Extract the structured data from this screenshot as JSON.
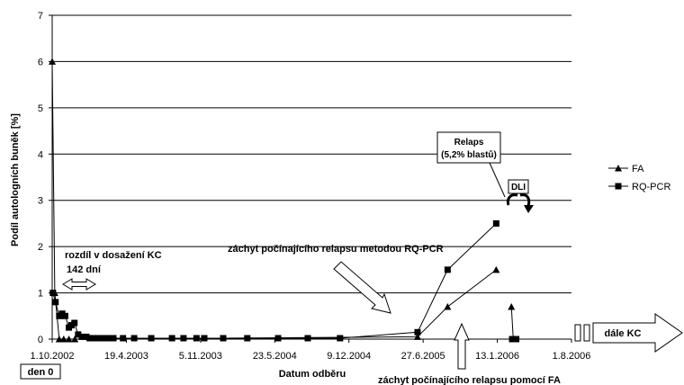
{
  "chart_data": {
    "type": "line",
    "ylabel": "Podíl autologních buněk [%]",
    "xlabel": "Datum odběru",
    "ylim": [
      0,
      7
    ],
    "yticks": [
      "0",
      "1",
      "2",
      "3",
      "4",
      "5",
      "6",
      "7"
    ],
    "xlim": [
      "2002-10-01",
      "2006-08-01"
    ],
    "xticks": [
      {
        "date": "2002-10-01",
        "label": "1.10.2002"
      },
      {
        "date": "2003-04-19",
        "label": "19.4.2003"
      },
      {
        "date": "2003-11-05",
        "label": "5.11.2003"
      },
      {
        "date": "2004-05-23",
        "label": "23.5.2004"
      },
      {
        "date": "2004-12-09",
        "label": "9.12.2004"
      },
      {
        "date": "2005-06-27",
        "label": "27.6.2005"
      },
      {
        "date": "2006-01-13",
        "label": "13.1.2006"
      },
      {
        "date": "2006-08-01",
        "label": "1.8.2006"
      }
    ],
    "grid": true,
    "legend_position": "right",
    "series": [
      {
        "name": "FA",
        "marker": "triangle",
        "color": "#000000",
        "points": [
          {
            "x": "2002-10-01",
            "y": 6.0
          },
          {
            "x": "2002-10-08",
            "y": 1.0
          },
          {
            "x": "2002-10-20",
            "y": 0.0
          },
          {
            "x": "2002-11-01",
            "y": 0.0
          },
          {
            "x": "2002-11-15",
            "y": 0.0
          },
          {
            "x": "2002-12-01",
            "y": 0.0
          },
          {
            "x": "2005-06-12",
            "y": 0.05
          },
          {
            "x": "2005-09-01",
            "y": 0.7
          },
          {
            "x": "2006-01-10",
            "y": 1.5
          }
        ],
        "segments": [
          {
            "x": "2006-02-20",
            "y": 0.7
          },
          {
            "x": "2006-02-25",
            "y": 0.0
          }
        ]
      },
      {
        "name": "RQ-PCR",
        "marker": "square",
        "color": "#000000",
        "points": [
          {
            "x": "2002-10-03",
            "y": 1.0
          },
          {
            "x": "2002-10-10",
            "y": 0.8
          },
          {
            "x": "2002-10-20",
            "y": 0.5
          },
          {
            "x": "2002-10-28",
            "y": 0.55
          },
          {
            "x": "2002-11-05",
            "y": 0.5
          },
          {
            "x": "2002-11-15",
            "y": 0.25
          },
          {
            "x": "2002-11-22",
            "y": 0.3
          },
          {
            "x": "2002-11-30",
            "y": 0.35
          },
          {
            "x": "2002-12-10",
            "y": 0.1
          },
          {
            "x": "2002-12-20",
            "y": 0.05
          },
          {
            "x": "2003-01-01",
            "y": 0.05
          },
          {
            "x": "2003-01-10",
            "y": 0.02
          },
          {
            "x": "2003-01-20",
            "y": 0.02
          },
          {
            "x": "2003-02-01",
            "y": 0.02
          },
          {
            "x": "2003-02-15",
            "y": 0.02
          },
          {
            "x": "2003-03-01",
            "y": 0.02
          },
          {
            "x": "2003-03-15",
            "y": 0.02
          },
          {
            "x": "2003-04-10",
            "y": 0.02
          },
          {
            "x": "2003-05-10",
            "y": 0.02
          },
          {
            "x": "2003-06-25",
            "y": 0.02
          },
          {
            "x": "2003-08-20",
            "y": 0.02
          },
          {
            "x": "2003-09-20",
            "y": 0.02
          },
          {
            "x": "2003-10-25",
            "y": 0.02
          },
          {
            "x": "2003-11-15",
            "y": 0.02
          },
          {
            "x": "2004-01-05",
            "y": 0.02
          },
          {
            "x": "2004-03-10",
            "y": 0.02
          },
          {
            "x": "2004-06-01",
            "y": 0.02
          },
          {
            "x": "2004-08-20",
            "y": 0.02
          },
          {
            "x": "2004-11-15",
            "y": 0.02
          },
          {
            "x": "2005-06-12",
            "y": 0.15
          },
          {
            "x": "2005-09-01",
            "y": 1.5
          },
          {
            "x": "2006-01-10",
            "y": 2.5
          }
        ],
        "segments": [
          {
            "x": "2006-02-22",
            "y": 0.0
          },
          {
            "x": "2006-03-05",
            "y": 0.0
          }
        ]
      }
    ],
    "annotations": {
      "den0": "den 0",
      "rozdil": "rozdíl v dosažení KC",
      "dni": "142 dní",
      "zachyt_rq": "záchyt počínajícího relapsu metodou RQ-PCR",
      "zachyt_fa": "záchyt počínajícího relapsu pomocí FA",
      "relaps_line1": "Relaps",
      "relaps_line2": "(5,2% blastů)",
      "dli": "DLI",
      "dale_kc": "dále KC"
    }
  }
}
